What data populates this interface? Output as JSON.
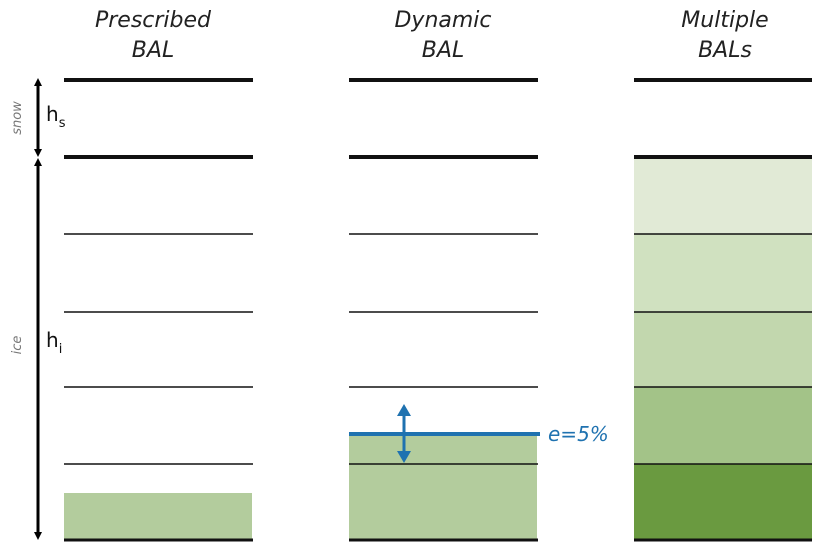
{
  "columns": [
    {
      "title_line1": "Prescribed",
      "title_line2": "BAL"
    },
    {
      "title_line1": "Dynamic",
      "title_line2": "BAL"
    },
    {
      "title_line1": "Multiple",
      "title_line2": "BALs"
    }
  ],
  "left_axis": {
    "snow_label": "snow",
    "ice_label": "ice",
    "hs_base": "h",
    "hs_sub": "s",
    "hi_base": "h",
    "hi_sub": "i"
  },
  "dynamic_annotation": "e=5%",
  "colors": {
    "line": "#111111",
    "bal_fill": "#b3cc9d",
    "dynamic_line": "#1f72b0",
    "arrow": "#000000",
    "multi_layers": [
      "#e1ead6",
      "#d0e1c0",
      "#c2d7ae",
      "#a3c388",
      "#6a9a40"
    ]
  }
}
